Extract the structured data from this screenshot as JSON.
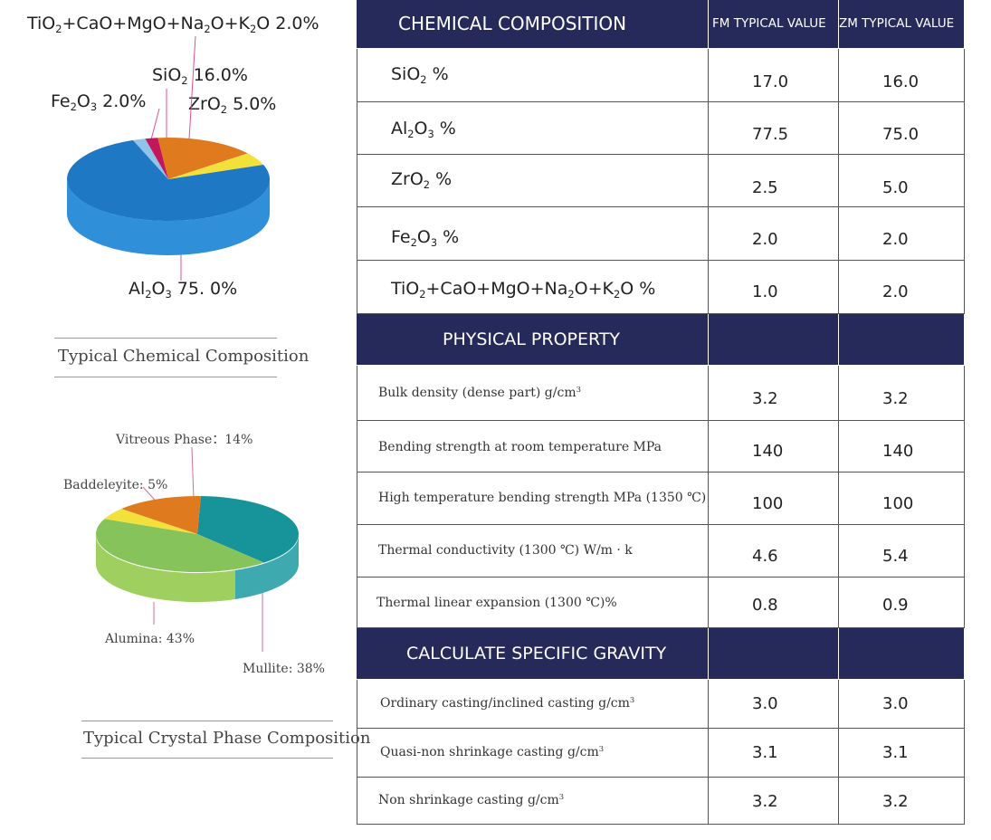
{
  "chemical_chart": {
    "label_misc": "TiO2+CaO+MgO+Na2O+K2O  2.0%",
    "label_sio2": "SiO2  16.0%",
    "label_fe2o3": "Fe2O3  2.0%",
    "label_zro2": "ZrO2  5.0%",
    "label_al2o3": "Al2O3 75. 0%",
    "caption": "Typical Chemical Composition"
  },
  "crystal_chart": {
    "label_vitreous": "Vitreous Phase：14%",
    "label_baddeleyite": "Baddeleyite: 5%",
    "label_alumina": "Alumina: 43%",
    "label_mullite": "Mullite: 38%",
    "caption": "Typical Crystal Phase Composition"
  },
  "chart_data": [
    {
      "type": "pie",
      "title": "Typical Chemical Composition",
      "categories": [
        "Al2O3",
        "SiO2",
        "ZrO2",
        "Fe2O3",
        "TiO2+CaO+MgO+Na2O+K2O"
      ],
      "values": [
        75.0,
        16.0,
        5.0,
        2.0,
        2.0
      ],
      "colors": [
        "#1f78c4",
        "#e07a1f",
        "#f2e13a",
        "#c2185b",
        "#8fc3e8"
      ]
    },
    {
      "type": "pie",
      "title": "Typical Crystal Phase Composition",
      "categories": [
        "Mullite",
        "Alumina",
        "Baddeleyite",
        "Vitreous Phase"
      ],
      "values": [
        38,
        43,
        5,
        14
      ],
      "colors": [
        "#16949a",
        "#86c35a",
        "#f2e13a",
        "#e07a1f"
      ]
    }
  ],
  "table": {
    "header_chem": "CHEMICAL COMPOSITION",
    "col_fm": "FM TYPICAL VALUE",
    "col_zm": "ZM TYPICAL VALUE",
    "chem_rows": [
      {
        "name": "SiO2 %",
        "fm": "17.0",
        "zm": "16.0"
      },
      {
        "name": "Al2O3 %",
        "fm": "77.5",
        "zm": "75.0"
      },
      {
        "name": "ZrO2 %",
        "fm": "2.5",
        "zm": "5.0"
      },
      {
        "name": "Fe2O3 %",
        "fm": "2.0",
        "zm": "2.0"
      },
      {
        "name": "TiO2+CaO+MgO+Na2O+K2O  %",
        "fm": "1.0",
        "zm": "2.0"
      }
    ],
    "header_phys": "PHYSICAL PROPERTY",
    "phys_rows": [
      {
        "name": "Bulk density (dense part) g/cm3",
        "fm": "3.2",
        "zm": "3.2"
      },
      {
        "name": "Bending strength at room temperature MPa",
        "fm": "140",
        "zm": "140"
      },
      {
        "name": "High temperature bending strength MPa (1350 ℃)",
        "fm": "100",
        "zm": "100"
      },
      {
        "name": "Thermal conductivity (1300 ℃) W/m · k",
        "fm": "4.6",
        "zm": "5.4"
      },
      {
        "name": "Thermal linear expansion (1300 ℃)%",
        "fm": "0.8",
        "zm": "0.9"
      }
    ],
    "header_grav": "CALCULATE SPECIFIC GRAVITY",
    "grav_rows": [
      {
        "name": "Ordinary casting/inclined casting g/cm3",
        "fm": "3.0",
        "zm": "3.0"
      },
      {
        "name": "Quasi-non shrinkage casting g/cm3",
        "fm": "3.1",
        "zm": "3.1"
      },
      {
        "name": "Non shrinkage casting g/cm3",
        "fm": "3.2",
        "zm": "3.2"
      }
    ]
  }
}
